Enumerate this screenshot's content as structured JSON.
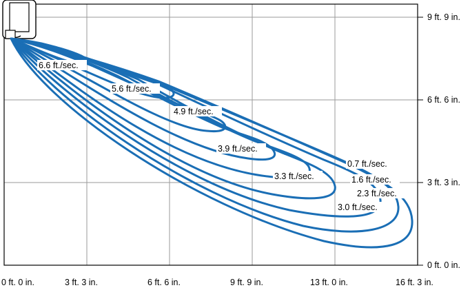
{
  "colors": {
    "curve": "#1a6eb5",
    "grid": "#9a9a9a",
    "frame": "#000000",
    "label_bg": "#ffffff"
  },
  "icons": {
    "unit": "air-conditioner-indoor-unit-icon"
  },
  "axes": {
    "x_ticks": [
      "0 ft. 0 in.",
      "3 ft. 3 in.",
      "6 ft. 6 in.",
      "9 ft. 9 in.",
      "13 ft. 0 in.",
      "16 ft. 3 in."
    ],
    "y_ticks": [
      "0 ft. 0 in.",
      "3 ft. 3 in.",
      "6 ft. 6 in.",
      "9 ft. 9 in."
    ]
  },
  "velocity_labels": [
    "6.6 ft./sec.",
    "5.6 ft./sec.",
    "4.9 ft./sec.",
    "3.9 ft./sec.",
    "3.3 ft./sec.",
    "0.7 ft./sec.",
    "1.6 ft./sec.",
    "2.3 ft./sec.",
    "3.0 ft./sec."
  ]
}
